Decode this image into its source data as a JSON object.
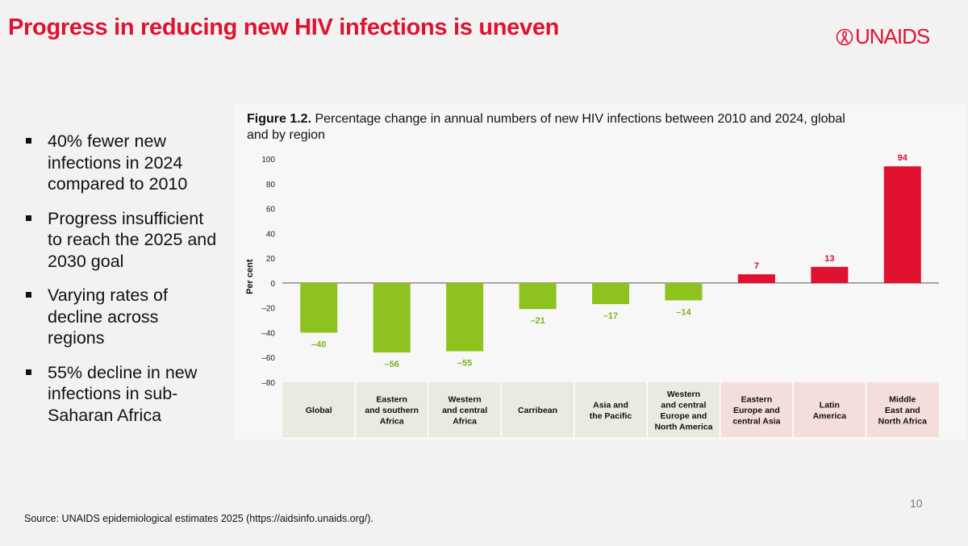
{
  "slide": {
    "title": "Progress in reducing new HIV infections is uneven",
    "logo_text": "UNAIDS",
    "bullets": [
      "40% fewer new infections in 2024 compared to 2010",
      "Progress insufficient to reach the 2025 and 2030 goal",
      "Varying rates of decline across regions",
      "55% decline in new infections in sub-Saharan Africa"
    ],
    "source": "Source: UNAIDS epidemiological estimates 2025 (https://aidsinfo.unaids.org/).",
    "page_number": "10"
  },
  "figure": {
    "label": "Figure 1.2.",
    "caption": "Percentage change in annual numbers of new HIV infections between 2010 and 2024, global and by region"
  },
  "colors": {
    "title_red": "#e0122f",
    "bar_green": "#8dc21f",
    "bar_red": "#e0122f",
    "label_green": "#7ab51d",
    "label_red": "#d41130",
    "cat_bg_green": "#e8ebdf",
    "cat_bg_red": "#f3dedb"
  },
  "chart_data": {
    "type": "bar",
    "title": "Percentage change in annual numbers of new HIV infections between 2010 and 2024, global and by region",
    "xlabel": "",
    "ylabel": "Per cent",
    "ylim": [
      -80,
      100
    ],
    "yticks": [
      "100",
      "80",
      "60",
      "40",
      "20",
      "0",
      "–20",
      "–40",
      "–60",
      "–80"
    ],
    "ytick_values": [
      100,
      80,
      60,
      40,
      20,
      0,
      -20,
      -40,
      -60,
      -80
    ],
    "categories": [
      [
        "Global"
      ],
      [
        "Eastern",
        "and southern",
        "Africa"
      ],
      [
        "Western",
        "and central",
        "Africa"
      ],
      [
        "Carribean"
      ],
      [
        "Asia and",
        "the Pacific"
      ],
      [
        "Western",
        "and central",
        "Europe and",
        "North America"
      ],
      [
        "Eastern",
        "Europe and",
        "central Asia"
      ],
      [
        "Latin",
        "America"
      ],
      [
        "Middle",
        "East and",
        "North Africa"
      ]
    ],
    "values": [
      -40,
      -56,
      -55,
      -21,
      -17,
      -14,
      7,
      13,
      94
    ],
    "value_labels": [
      "–40",
      "–56",
      "–55",
      "–21",
      "–17",
      "–14",
      "7",
      "13",
      "94"
    ]
  }
}
